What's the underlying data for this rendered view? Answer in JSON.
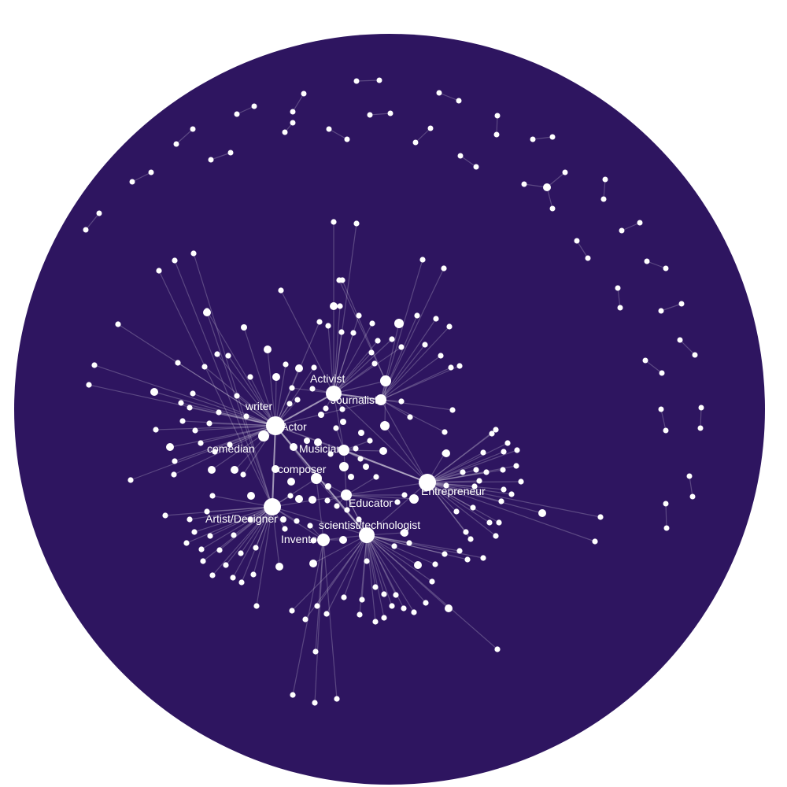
{
  "background_color": "#2e1560",
  "node_color": "#ffffff",
  "edge_color": "#ffffff",
  "labels": {
    "activist": "Activist",
    "journalist": "Journalist",
    "writer": "writer",
    "actor": "Actor",
    "comedian": "comedian",
    "musician": "Musician",
    "composer": "composer",
    "entrepreneur": "Entrepreneur",
    "educator": "Educator",
    "artist_designer": "Artist/Designer",
    "scientist_technologist": "scientist/technologist",
    "inventor": "Inventor"
  }
}
